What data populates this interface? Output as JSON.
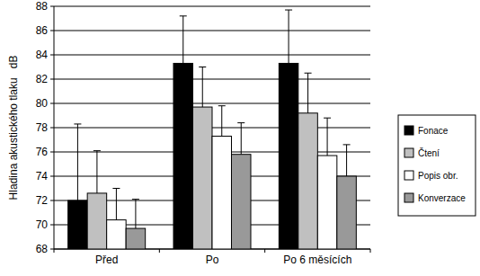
{
  "chart_data": {
    "type": "bar",
    "y_label": "Hladina akustického tlaku   dB",
    "categories": [
      "Před",
      "Po",
      "Po 6 měsících"
    ],
    "ylim": [
      68,
      88
    ],
    "yticks": [
      68,
      70,
      72,
      74,
      76,
      78,
      80,
      82,
      84,
      86,
      88
    ],
    "grid": true,
    "legend": "right",
    "series": [
      {
        "name": "Fonace",
        "color": "#000000",
        "values": [
          72.0,
          83.3,
          83.3
        ],
        "errors": [
          6.3,
          3.9,
          4.4
        ]
      },
      {
        "name": "Čtení",
        "color": "#c0c0c0",
        "values": [
          72.6,
          79.7,
          79.2
        ],
        "errors": [
          3.5,
          3.3,
          3.3
        ]
      },
      {
        "name": "Popis obr.",
        "color": "#ffffff",
        "values": [
          70.4,
          77.3,
          75.7
        ],
        "errors": [
          2.6,
          2.5,
          3.1
        ]
      },
      {
        "name": "Konverzace",
        "color": "#999999",
        "values": [
          69.7,
          75.8,
          74.0
        ],
        "errors": [
          2.4,
          2.6,
          2.6
        ]
      }
    ]
  }
}
